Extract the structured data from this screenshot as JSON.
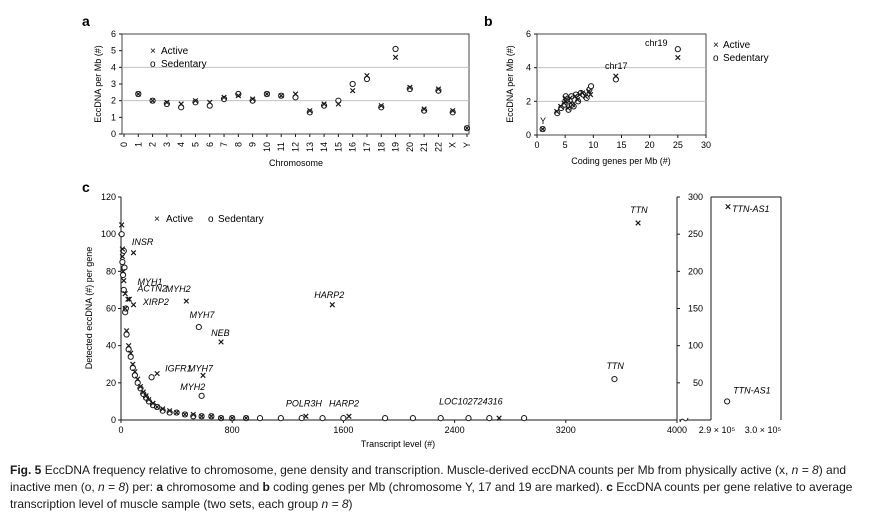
{
  "panels": {
    "a": "a",
    "b": "b",
    "c": "c"
  },
  "legend": {
    "active_marker": "×",
    "sedentary_marker": "o",
    "active": "Active",
    "sedentary": "Sedentary"
  },
  "colors": {
    "ink": "#1a1a1a",
    "grid": "#b8b8b8"
  },
  "caption": {
    "fig": "Fig. 5",
    "text1": "EccDNA frequency relative to chromosome, gene density and transcription. Muscle-derived eccDNA counts per Mb from physically active (x, ",
    "n1": "n = 8",
    "text2": ") and inactive men (o, ",
    "n2": "n = 8",
    "text3": ") per: ",
    "a_letter": "a",
    "text4": " chromosome and ",
    "b_letter": "b",
    "text5": " coding genes per Mb (chromosome Y, 17 and 19 are marked). ",
    "c_letter": "c",
    "text6": " EccDNA counts per gene relative to average transcription level of muscle sample (two sets, each group ",
    "n3": "n = 8",
    "text7": ")"
  },
  "chart_data": [
    {
      "id": "a",
      "type": "scatter",
      "title": "",
      "xlabel": "Chromosome",
      "ylabel": "EccDNA per Mb (#)",
      "ylim": [
        0,
        6
      ],
      "yticks": [
        0,
        1,
        2,
        3,
        4,
        5,
        6
      ],
      "categories": [
        "0",
        "1",
        "2",
        "3",
        "4",
        "5",
        "6",
        "7",
        "8",
        "9",
        "10",
        "11",
        "12",
        "13",
        "14",
        "15",
        "16",
        "17",
        "18",
        "19",
        "20",
        "21",
        "22",
        "X",
        "Y"
      ],
      "grid": "horizontal at 2, 4, 6",
      "series": [
        {
          "name": "Active",
          "marker": "x",
          "values": [
            null,
            2.4,
            2.0,
            1.9,
            1.8,
            2.0,
            1.9,
            2.2,
            2.3,
            2.1,
            2.4,
            2.3,
            2.4,
            1.4,
            1.8,
            1.8,
            2.6,
            3.5,
            1.7,
            4.6,
            2.8,
            1.5,
            2.7,
            1.4,
            0.35
          ]
        },
        {
          "name": "Sedentary",
          "marker": "o",
          "values": [
            null,
            2.4,
            2.0,
            1.8,
            1.6,
            1.9,
            1.7,
            2.1,
            2.4,
            2.0,
            2.4,
            2.3,
            2.2,
            1.3,
            1.7,
            2.0,
            3.0,
            3.3,
            1.6,
            5.1,
            2.7,
            1.4,
            2.6,
            1.3,
            0.35
          ]
        }
      ]
    },
    {
      "id": "b",
      "type": "scatter",
      "title": "",
      "xlabel": "Coding genes per Mb (#)",
      "ylabel": "EccDNA per Mb (#)",
      "xlim": [
        0,
        30
      ],
      "ylim": [
        0,
        6
      ],
      "xticks": [
        0,
        5,
        10,
        15,
        20,
        25,
        30
      ],
      "yticks": [
        0,
        2,
        4,
        6
      ],
      "grid": "horizontal at 2, 4, 6",
      "legend": "top-right",
      "annotations": [
        {
          "text": "chr19",
          "x": 25,
          "y": 5.1
        },
        {
          "text": "chr17",
          "x": 14,
          "y": 3.4
        },
        {
          "text": "Y",
          "x": 1,
          "y": 0.35
        }
      ],
      "series": [
        {
          "name": "Active",
          "marker": "x",
          "x": [
            3.5,
            4.2,
            4.8,
            5.2,
            5.5,
            5.9,
            6.3,
            6.8,
            7.2,
            7.6,
            8.1,
            8.6,
            9.2,
            9.5,
            5.0,
            6.0,
            14.0,
            25.0,
            1.0
          ],
          "y": [
            1.4,
            1.7,
            1.9,
            2.0,
            1.6,
            2.2,
            1.8,
            2.3,
            2.1,
            2.4,
            2.5,
            2.3,
            2.6,
            2.4,
            2.2,
            1.9,
            3.5,
            4.6,
            0.35
          ]
        },
        {
          "name": "Sedentary",
          "marker": "o",
          "x": [
            3.6,
            4.3,
            4.9,
            5.3,
            5.6,
            6.1,
            6.5,
            6.9,
            7.3,
            7.8,
            8.2,
            8.8,
            9.3,
            9.6,
            5.1,
            6.2,
            14.0,
            25.0,
            1.0
          ],
          "y": [
            1.3,
            1.6,
            1.8,
            2.1,
            1.5,
            2.3,
            1.7,
            2.4,
            2.0,
            2.5,
            2.4,
            2.2,
            2.7,
            2.9,
            2.3,
            1.8,
            3.3,
            5.1,
            0.35
          ]
        }
      ]
    },
    {
      "id": "c",
      "type": "scatter",
      "title": "",
      "xlabel": "Transcript level (#)",
      "ylabel": "Detected eccDNA (#) per gene",
      "xlim": [
        0,
        4000
      ],
      "ylim": [
        0,
        120
      ],
      "xticks": [
        0,
        800,
        1600,
        2400,
        3200,
        4000
      ],
      "yticks": [
        0,
        20,
        40,
        60,
        80,
        100,
        120
      ],
      "broken_axis": {
        "xticks": [
          "2.9 × 10⁵",
          "3.0 × 10⁵"
        ],
        "xrange": [
          290000,
          300000
        ],
        "ylim": [
          0,
          300
        ],
        "yticks": [
          50,
          100,
          150,
          200,
          250,
          300
        ]
      },
      "legend": "top-left",
      "annotations": [
        {
          "text": "INSR",
          "x": 35,
          "y": 92
        },
        {
          "text": "MYH1",
          "x": 90,
          "y": 72
        },
        {
          "text": "ACTN2",
          "x": 60,
          "y": 68
        },
        {
          "text": "XIRP2",
          "x": 100,
          "y": 64
        },
        {
          "text": "MYH2",
          "x": 465,
          "y": 64
        },
        {
          "text": "MYH7",
          "x": 565,
          "y": 50
        },
        {
          "text": "NEB",
          "x": 720,
          "y": 42
        },
        {
          "text": "HARP2",
          "x": 1520,
          "y": 62
        },
        {
          "text": "IGFR1",
          "x": 260,
          "y": 24
        },
        {
          "text": "MYH7",
          "x": 590,
          "y": 24
        },
        {
          "text": "MYH2",
          "x": 570,
          "y": 14
        },
        {
          "text": "POLR3H",
          "x": 1330,
          "y": 2
        },
        {
          "text": "HARP2",
          "x": 1640,
          "y": 2
        },
        {
          "text": "LOC102724316",
          "x": 2720,
          "y": 2
        },
        {
          "text": "TTN",
          "x": 3720,
          "y": 106
        },
        {
          "text": "TTN",
          "x": 3550,
          "y": 22
        },
        {
          "text": "TTN-AS1",
          "x": 292500,
          "y": 284
        },
        {
          "text": "TTN-AS1",
          "x": 292300,
          "y": 30
        }
      ],
      "series": [
        {
          "name": "Active",
          "marker": "x",
          "x": [
            5,
            10,
            15,
            20,
            30,
            40,
            55,
            70,
            85,
            100,
            120,
            140,
            160,
            180,
            200,
            230,
            260,
            300,
            350,
            400,
            460,
            520,
            580,
            650,
            720,
            800,
            900,
            10,
            50,
            90,
            30,
            60,
            90,
            470,
            720,
            1520,
            260,
            590,
            1330,
            1640,
            2720,
            3720
          ],
          "y": [
            105,
            88,
            80,
            75,
            60,
            48,
            40,
            36,
            30,
            26,
            22,
            18,
            15,
            13,
            11,
            9,
            7,
            6,
            5,
            4,
            3,
            3,
            2,
            2,
            1,
            1,
            1,
            92,
            65,
            90,
            68,
            65,
            62,
            64,
            42,
            62,
            25,
            24,
            2,
            2,
            1,
            106
          ],
          "broken": {
            "x": [
              292500
            ],
            "y": [
              287
            ]
          }
        },
        {
          "name": "Sedentary",
          "marker": "o",
          "x": [
            5,
            10,
            15,
            20,
            30,
            40,
            55,
            70,
            85,
            100,
            120,
            140,
            160,
            180,
            200,
            230,
            260,
            300,
            350,
            400,
            460,
            520,
            580,
            650,
            720,
            800,
            900,
            1000,
            1150,
            1300,
            1450,
            1600,
            1900,
            2100,
            2300,
            2500,
            2650,
            2900,
            20,
            25,
            35,
            560,
            220,
            580,
            3550
          ],
          "y": [
            100,
            85,
            78,
            70,
            58,
            46,
            38,
            34,
            28,
            24,
            20,
            17,
            14,
            12,
            10,
            8,
            7,
            5,
            4,
            4,
            3,
            2,
            2,
            2,
            1,
            1,
            1,
            1,
            1,
            1,
            1,
            1,
            1,
            1,
            1,
            1,
            1,
            1,
            91,
            82,
            60,
            50,
            23,
            13,
            22
          ],
          "broken": {
            "x": [
              292300
            ],
            "y": [
              25
            ]
          }
        }
      ]
    }
  ]
}
